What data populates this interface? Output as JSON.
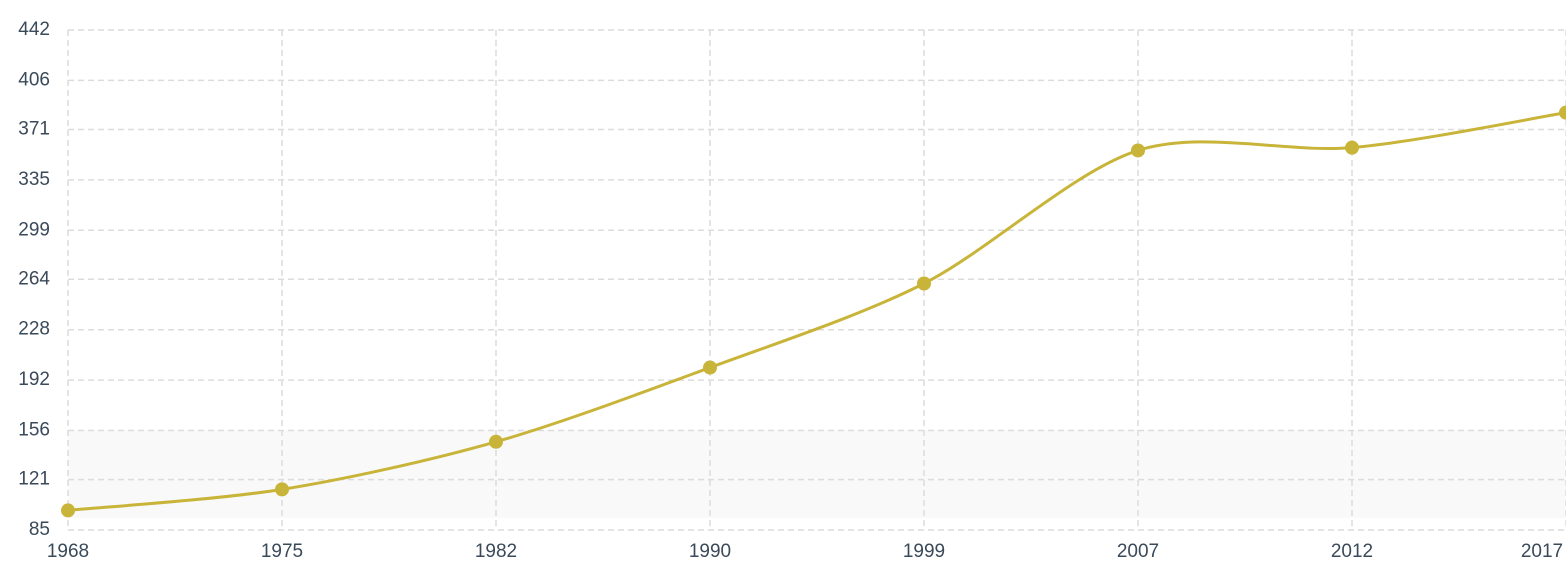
{
  "chart_data": {
    "type": "line",
    "categories": [
      "1968",
      "1975",
      "1982",
      "1990",
      "1999",
      "2007",
      "2012",
      "2017"
    ],
    "series": [
      {
        "color": "#c9b43a",
        "values": [
          99,
          114,
          148,
          201,
          261,
          356,
          358,
          383
        ]
      }
    ],
    "ylim": [
      85,
      442
    ],
    "yticks": [
      85,
      121,
      156,
      192,
      228,
      264,
      299,
      335,
      371,
      406,
      442
    ],
    "grid": true
  }
}
